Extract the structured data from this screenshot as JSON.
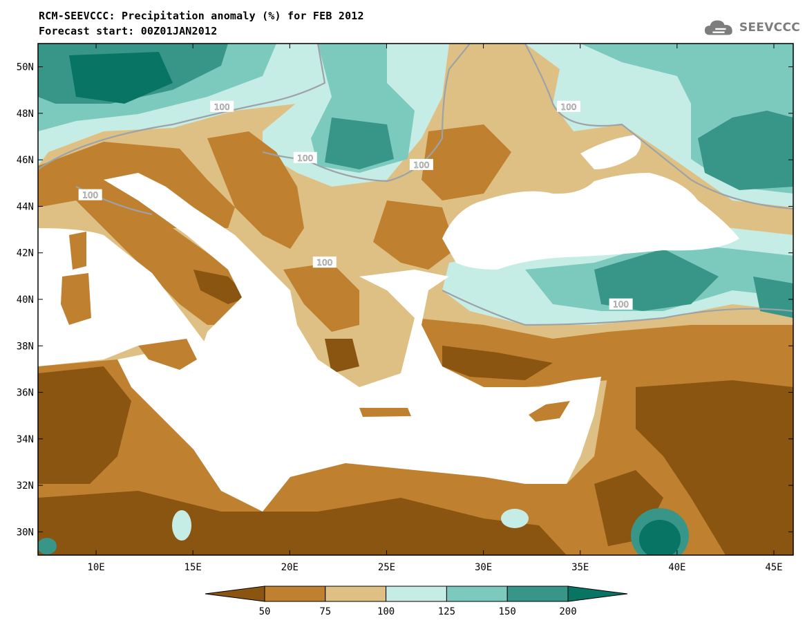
{
  "title_line1": "RCM-SEEVCCC: Precipitation anomaly (%) for FEB 2012",
  "title_line2": "Forecast start: 00Z01JAN2012",
  "logo_text": "SEEVCCC",
  "map": {
    "lon_range": [
      7,
      46
    ],
    "lat_range": [
      29,
      51
    ],
    "lat_labels": [
      "50N",
      "48N",
      "46N",
      "44N",
      "42N",
      "40N",
      "38N",
      "36N",
      "34N",
      "32N",
      "30N"
    ],
    "lat_values": [
      50,
      48,
      46,
      44,
      42,
      40,
      38,
      36,
      34,
      32,
      30
    ],
    "lon_labels": [
      "10E",
      "15E",
      "20E",
      "25E",
      "30E",
      "35E",
      "40E",
      "45E"
    ],
    "lon_values": [
      10,
      15,
      20,
      25,
      30,
      35,
      40,
      45
    ],
    "contour_labels": [
      {
        "text": "100",
        "lon": 16.5,
        "lat": 48.3
      },
      {
        "text": "100",
        "lon": 20.8,
        "lat": 46.1
      },
      {
        "text": "100",
        "lon": 26.8,
        "lat": 45.8
      },
      {
        "text": "100",
        "lon": 34.4,
        "lat": 48.3
      },
      {
        "text": "100",
        "lon": 9.7,
        "lat": 44.5
      },
      {
        "text": "100",
        "lon": 21.8,
        "lat": 41.6
      },
      {
        "text": "100",
        "lon": 37.1,
        "lat": 39.8
      }
    ]
  },
  "colorbar": {
    "boundaries": [
      "50",
      "75",
      "100",
      "125",
      "150",
      "200"
    ],
    "colors": [
      "#8a5510",
      "#bf8030",
      "#dfc084",
      "#c6ece6",
      "#7cc9bd",
      "#389689",
      "#087464"
    ]
  },
  "colors": {
    "sea": "#ffffff",
    "very_dry": "#8a5510",
    "dry": "#bf8030",
    "slightly_dry": "#dfc084",
    "slightly_wet": "#c6ece6",
    "wet": "#7cc9bd",
    "very_wet": "#389689",
    "extreme_wet": "#087464"
  }
}
